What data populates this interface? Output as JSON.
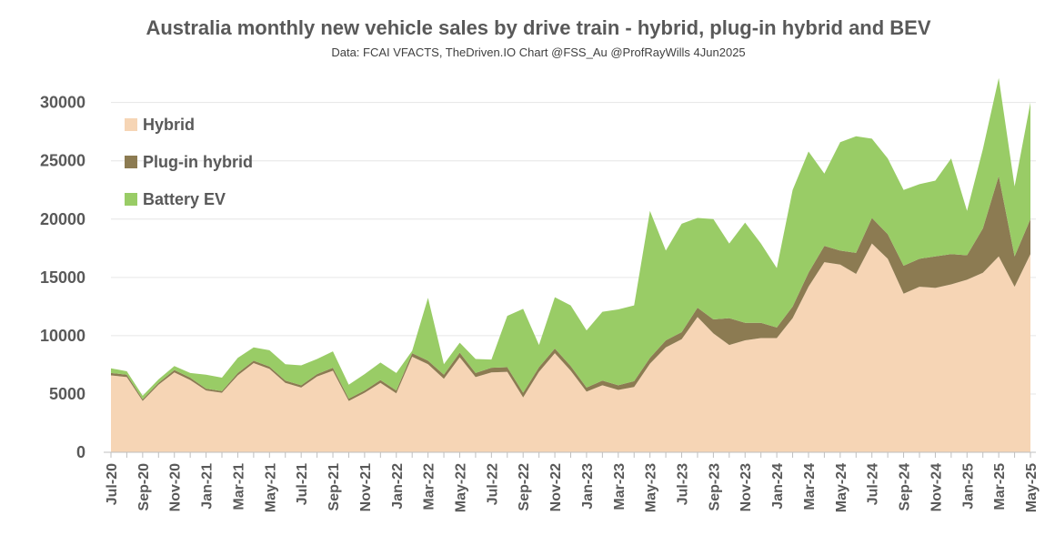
{
  "chart_data": {
    "type": "area",
    "stacked": true,
    "title": "Australia monthly new vehicle sales by drive train - hybrid, plug-in hybrid and BEV",
    "subtitle": "Data: FCAI VFACTS, TheDriven.IO  Chart @FSS_Au @ProfRayWills 4Jun2025",
    "xlabel": "",
    "ylabel": "",
    "ylim": [
      0,
      32000
    ],
    "yticks": [
      0,
      5000,
      10000,
      15000,
      20000,
      25000,
      30000
    ],
    "legend_position": "top-left",
    "grid": "horizontal",
    "x": [
      "Jul-20",
      "Aug-20",
      "Sep-20",
      "Oct-20",
      "Nov-20",
      "Dec-20",
      "Jan-21",
      "Feb-21",
      "Mar-21",
      "Apr-21",
      "May-21",
      "Jun-21",
      "Jul-21",
      "Aug-21",
      "Sep-21",
      "Oct-21",
      "Nov-21",
      "Dec-21",
      "Jan-22",
      "Feb-22",
      "Mar-22",
      "Apr-22",
      "May-22",
      "Jun-22",
      "Jul-22",
      "Aug-22",
      "Sep-22",
      "Oct-22",
      "Nov-22",
      "Dec-22",
      "Jan-23",
      "Feb-23",
      "Mar-23",
      "Apr-23",
      "May-23",
      "Jun-23",
      "Jul-23",
      "Aug-23",
      "Sep-23",
      "Oct-23",
      "Nov-23",
      "Dec-23",
      "Jan-24",
      "Feb-24",
      "Mar-24",
      "Apr-24",
      "May-24",
      "Jun-24",
      "Jul-24",
      "Aug-24",
      "Sep-24",
      "Oct-24",
      "Nov-24",
      "Dec-24",
      "Jan-25",
      "Feb-25",
      "Mar-25",
      "Apr-25",
      "May-25"
    ],
    "x_tick_labels": [
      "Jul-20",
      "Sep-20",
      "Nov-20",
      "Jan-21",
      "Mar-21",
      "May-21",
      "Jul-21",
      "Sep-21",
      "Nov-21",
      "Jan-22",
      "Mar-22",
      "May-22",
      "Jul-22",
      "Sep-22",
      "Nov-22",
      "Jan-23",
      "Mar-23",
      "May-23",
      "Jul-23",
      "Sep-23",
      "Nov-23",
      "Jan-24",
      "Mar-24",
      "May-24",
      "Jul-24",
      "Sep-24",
      "Nov-24",
      "Jan-25",
      "Mar-25",
      "May-25"
    ],
    "series": [
      {
        "name": "Hybrid",
        "color": "#f6d5b5",
        "values": [
          6600,
          6450,
          4400,
          5800,
          6850,
          6200,
          5300,
          5100,
          6600,
          7650,
          7150,
          5950,
          5550,
          6500,
          7000,
          4400,
          5100,
          5950,
          5050,
          8200,
          7550,
          6300,
          8150,
          6450,
          6850,
          6900,
          4700,
          6900,
          8500,
          7000,
          5200,
          5750,
          5350,
          5600,
          7600,
          9000,
          9700,
          11600,
          10200,
          9200,
          9600,
          9800,
          9800,
          11500,
          14200,
          16300,
          16100,
          15300,
          17900,
          16600,
          13600,
          14200,
          14100,
          14400,
          14800,
          15400,
          16800,
          14200,
          17000
        ]
      },
      {
        "name": "Plug-in hybrid",
        "color": "#8c7b52",
        "values": [
          200,
          200,
          150,
          150,
          200,
          200,
          150,
          150,
          200,
          200,
          200,
          200,
          200,
          200,
          250,
          200,
          200,
          250,
          250,
          300,
          300,
          350,
          400,
          350,
          400,
          400,
          400,
          400,
          400,
          400,
          350,
          400,
          400,
          500,
          500,
          600,
          600,
          800,
          1200,
          2300,
          1500,
          1300,
          900,
          1000,
          1200,
          1400,
          1200,
          1800,
          2200,
          2100,
          2400,
          2400,
          2700,
          2600,
          2100,
          3800,
          6900,
          2600,
          3000
        ]
      },
      {
        "name": "Battery EV",
        "color": "#99cc66",
        "values": [
          400,
          300,
          300,
          300,
          350,
          400,
          1200,
          1150,
          1300,
          1150,
          1400,
          1400,
          1700,
          1300,
          1400,
          1200,
          1400,
          1500,
          1500,
          200,
          5400,
          900,
          850,
          1200,
          700,
          4400,
          7200,
          1900,
          4400,
          5200,
          4900,
          5900,
          6500,
          6500,
          12600,
          7700,
          9300,
          7700,
          8600,
          6400,
          8600,
          6800,
          5100,
          10000,
          10400,
          6200,
          9300,
          10000,
          6800,
          6500,
          6500,
          6400,
          6500,
          8200,
          3800,
          6800,
          8400,
          6000,
          10000
        ]
      }
    ]
  }
}
